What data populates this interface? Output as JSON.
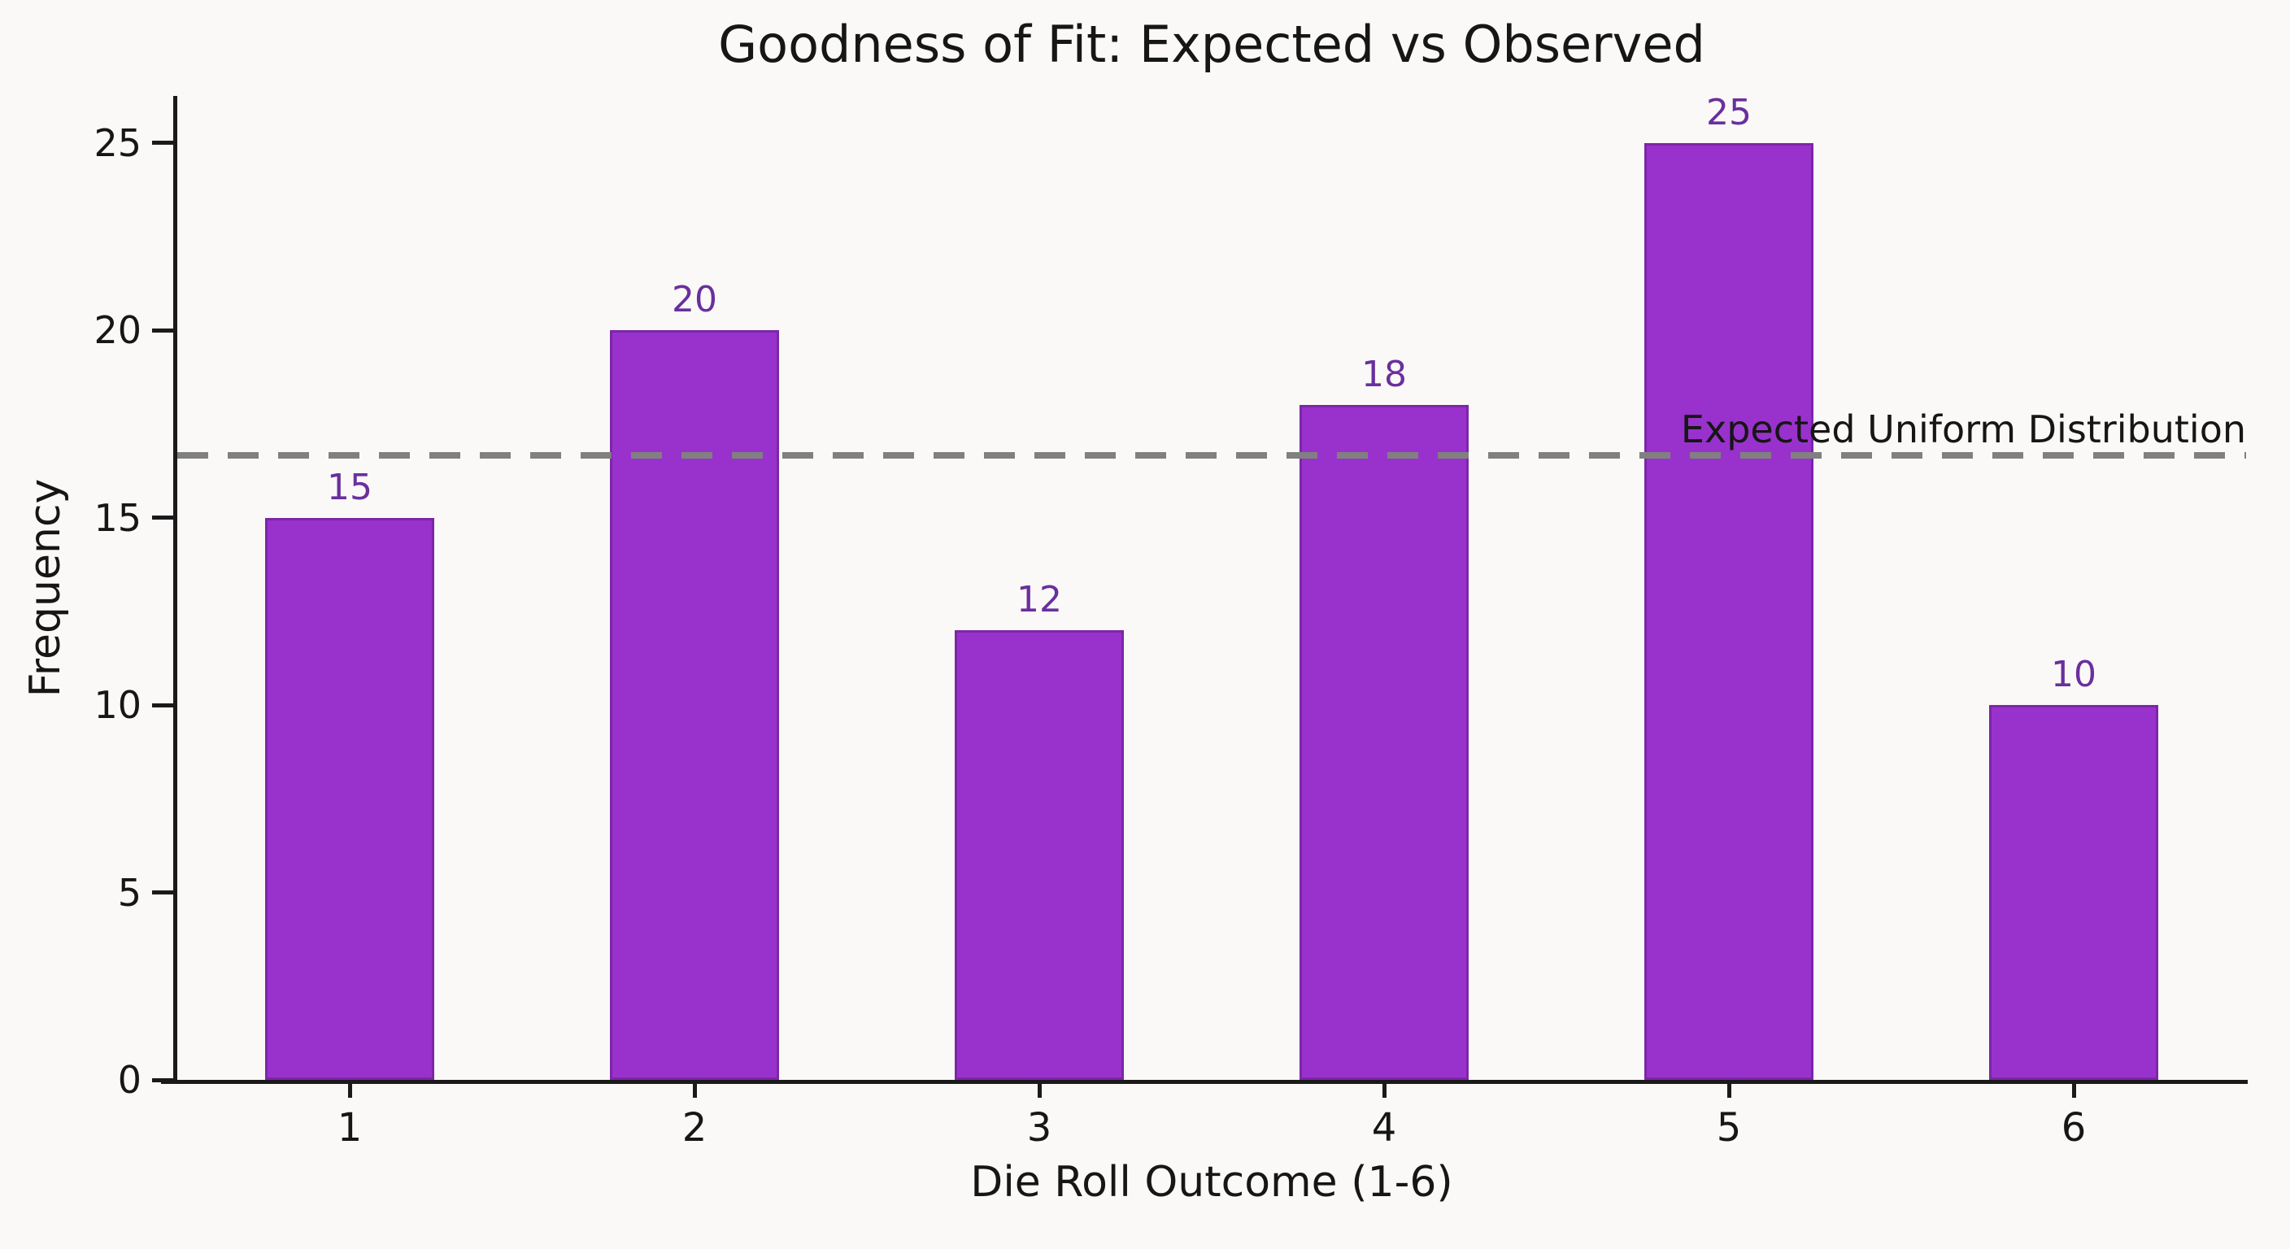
{
  "chart_data": {
    "type": "bar",
    "title": "Goodness of Fit: Expected vs Observed",
    "xlabel": "Die Roll Outcome (1-6)",
    "ylabel": "Frequency",
    "categories": [
      "1",
      "2",
      "3",
      "4",
      "5",
      "6"
    ],
    "values": [
      15,
      20,
      12,
      18,
      25,
      10
    ],
    "value_labels": [
      "15",
      "20",
      "12",
      "18",
      "25",
      "10"
    ],
    "yticks": [
      0,
      5,
      10,
      15,
      20,
      25
    ],
    "ylim": [
      0,
      26.25
    ],
    "grid": false,
    "legend_position": "annotation-above-line-right",
    "colors": {
      "bar_fill": "#9932cc",
      "bar_edge": "#7d26a8",
      "value_label": "#6a2f9e",
      "axis_text": "#161616",
      "reference_line": "#808080",
      "background": "#faf9f7"
    },
    "reference_line": {
      "value": 16.67,
      "label": "Expected Uniform Distribution",
      "style": "dashed",
      "color": "#808080"
    }
  }
}
